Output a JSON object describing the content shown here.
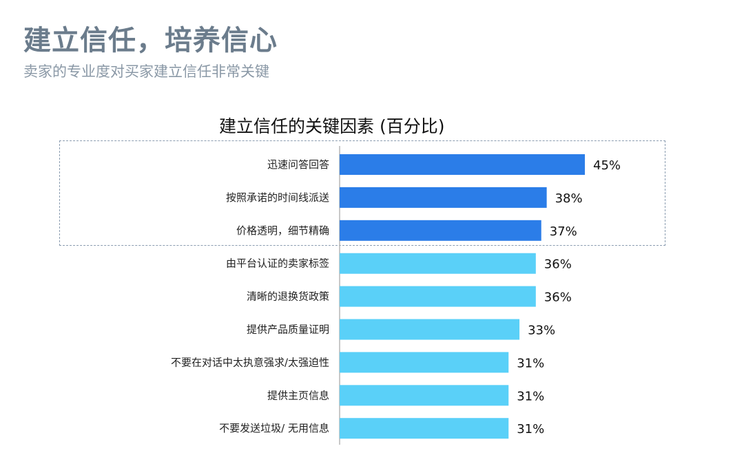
{
  "header": {
    "title": "建立信任，培养信心",
    "subtitle": "卖家的专业度对买家建立信任非常关键"
  },
  "colors": {
    "highlight_bar": "#2b7de8",
    "regular_bar": "#5ad0f8",
    "title": "#6b7c8c",
    "subtitle": "#8a98a6"
  },
  "chart_data": {
    "type": "bar",
    "orientation": "horizontal",
    "title": "建立信任的关键因素 (百分比)",
    "xlabel": "",
    "ylabel": "",
    "xlim": [
      0,
      50
    ],
    "grid": false,
    "highlight_count": 3,
    "categories": [
      "迅速问答回答",
      "按照承诺的时间线派送",
      "价格透明，细节精确",
      "由平台认证的卖家标签",
      "清晰的退换货政策",
      "提供产品质量证明",
      "不要在对话中太执意强求/太强迫性",
      "提供主页信息",
      "不要发送垃圾/ 无用信息"
    ],
    "values": [
      45,
      38,
      37,
      36,
      36,
      33,
      31,
      31,
      31
    ],
    "value_labels": [
      "45%",
      "38%",
      "37%",
      "36%",
      "36%",
      "33%",
      "31%",
      "31%",
      "31%"
    ]
  }
}
